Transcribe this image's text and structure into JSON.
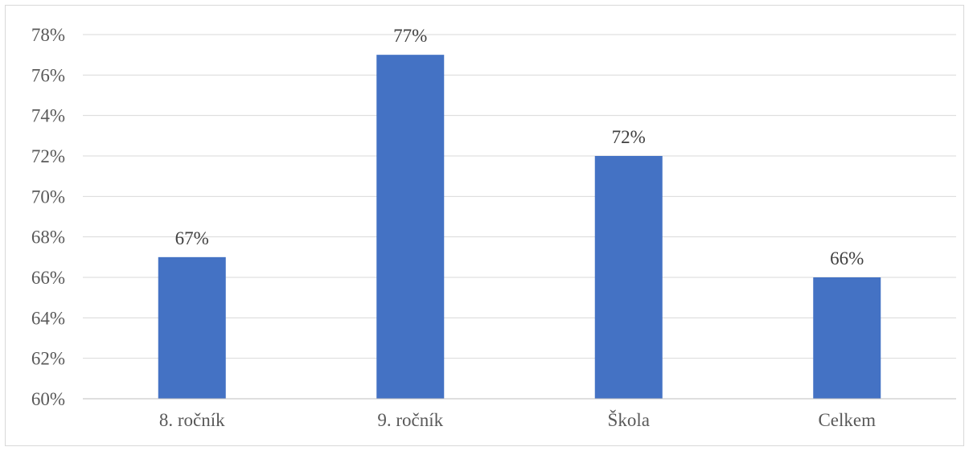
{
  "chart_data": {
    "type": "bar",
    "categories": [
      "8. ročník",
      "9. ročník",
      "Škola",
      "Celkem"
    ],
    "values": [
      67,
      77,
      72,
      66
    ],
    "data_labels": [
      "67%",
      "77%",
      "72%",
      "66%"
    ],
    "title": "",
    "xlabel": "",
    "ylabel": "",
    "ylim": [
      60,
      78
    ],
    "yticks": [
      60,
      62,
      64,
      66,
      68,
      70,
      72,
      74,
      76,
      78
    ],
    "ytick_labels": [
      "60%",
      "62%",
      "64%",
      "66%",
      "68%",
      "70%",
      "72%",
      "74%",
      "76%",
      "78%"
    ],
    "grid": true,
    "legend": "none",
    "bar_color": "#4472c4",
    "grid_color": "#d9d9d9"
  }
}
